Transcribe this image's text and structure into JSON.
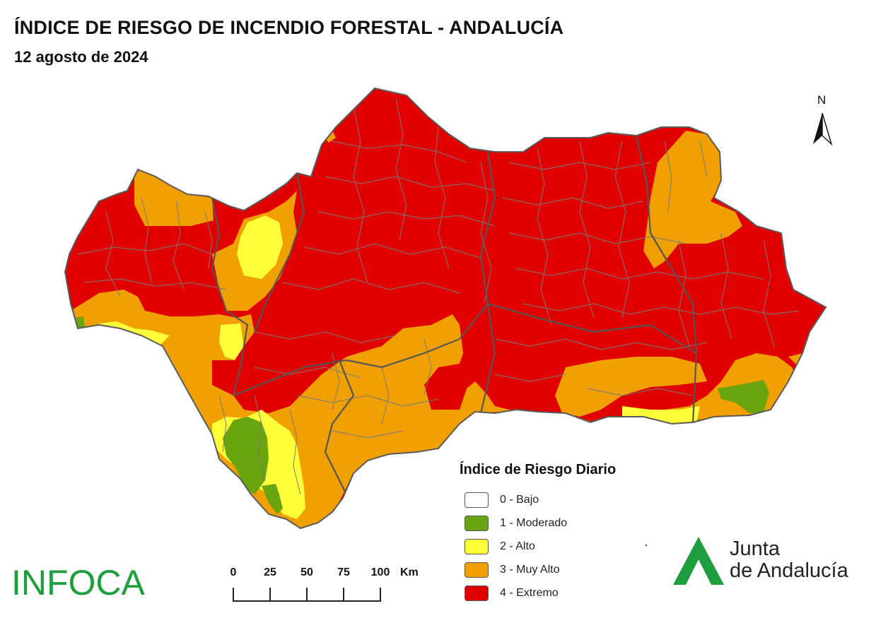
{
  "header": {
    "title": "ÍNDICE DE RIESGO DE INCENDIO FORESTAL - ANDALUCÍA",
    "date": "12 agosto de 2024"
  },
  "north_arrow": {
    "label": "N"
  },
  "legend": {
    "title": "Índice de Riesgo Diario",
    "items": [
      {
        "label": "0 - Bajo",
        "color": "#ffffff"
      },
      {
        "label": "1 - Moderado",
        "color": "#6aa510"
      },
      {
        "label": "2 - Alto",
        "color": "#ffff3a"
      },
      {
        "label": "3 - Muy Alto",
        "color": "#f0a000"
      },
      {
        "label": "4 - Extremo",
        "color": "#e00000"
      }
    ]
  },
  "scale_bar": {
    "ticks": [
      "0",
      "25",
      "50",
      "75",
      "100"
    ],
    "unit": "Km"
  },
  "logos": {
    "left": "INFOCA",
    "right_line1": "Junta",
    "right_line2": "de Andalucía",
    "brand_green": "#1e9e3e"
  }
}
